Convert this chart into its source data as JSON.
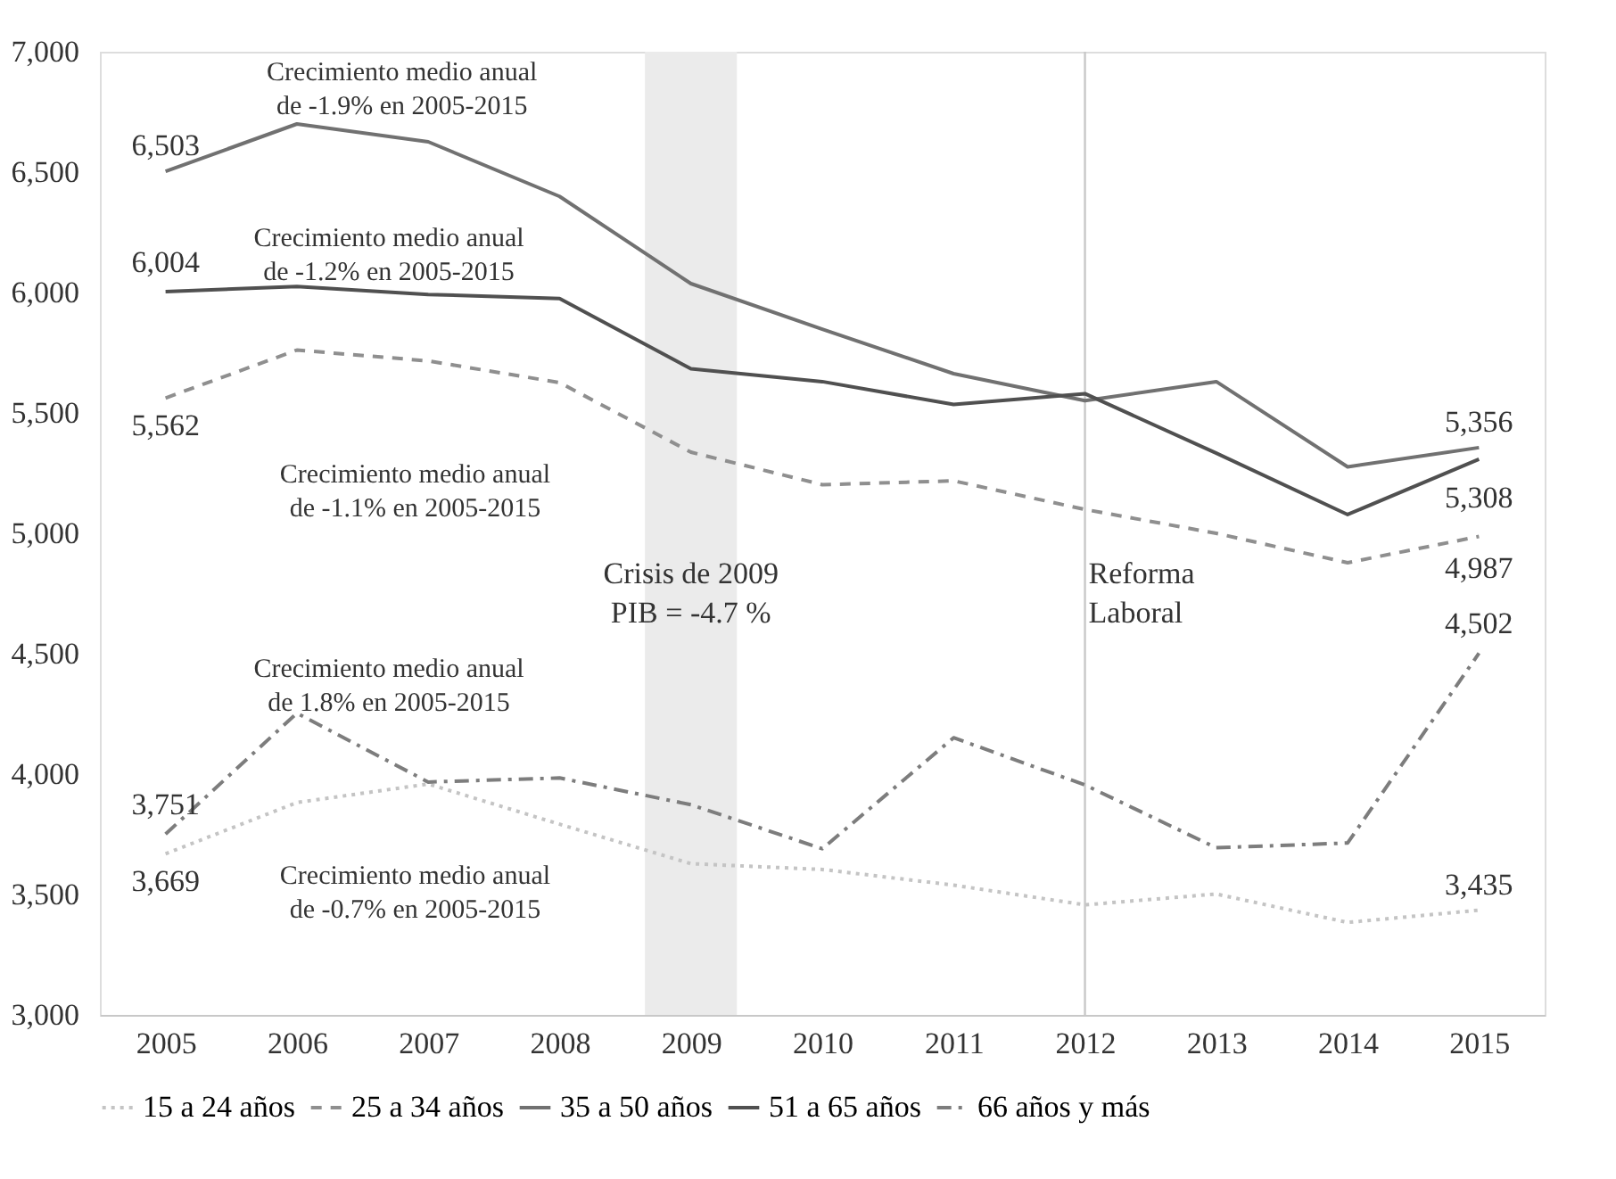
{
  "chart_data": {
    "type": "line",
    "x": [
      2005,
      2006,
      2007,
      2008,
      2009,
      2010,
      2011,
      2012,
      2013,
      2014,
      2015
    ],
    "series": [
      {
        "name": "15 a 24 años",
        "color": "#c4c4c4",
        "line_style": "dotted",
        "values": [
          3669,
          3882,
          3959,
          3792,
          3628,
          3604,
          3539,
          3457,
          3502,
          3384,
          3435
        ],
        "value_labels": [
          "3,669",
          null,
          null,
          null,
          null,
          null,
          null,
          null,
          null,
          null,
          "3,435"
        ]
      },
      {
        "name": "25 a 34 años",
        "color": "#8f8f8f",
        "line_style": "dashed",
        "values": [
          5562,
          5761,
          5716,
          5626,
          5337,
          5202,
          5218,
          5099,
          5000,
          4878,
          4987
        ],
        "value_labels": [
          "5,562",
          null,
          null,
          null,
          null,
          null,
          null,
          null,
          null,
          null,
          "4,987"
        ]
      },
      {
        "name": "35 a 50 años",
        "color": "#717171",
        "line_style": "solid",
        "values": [
          6503,
          6700,
          6626,
          6399,
          6037,
          5848,
          5663,
          5551,
          5630,
          5276,
          5356
        ],
        "value_labels": [
          "6,503",
          null,
          null,
          null,
          null,
          null,
          null,
          null,
          null,
          null,
          "5,356"
        ]
      },
      {
        "name": "51 a 65 años",
        "color": "#505050",
        "line_style": "solid",
        "values": [
          6004,
          6025,
          5992,
          5975,
          5683,
          5630,
          5535,
          5580,
          5333,
          5078,
          5308
        ],
        "value_labels": [
          "6,004",
          null,
          null,
          null,
          null,
          null,
          null,
          null,
          null,
          null,
          "5,308"
        ]
      },
      {
        "name": "66 años y más",
        "color": "#7d7d7d",
        "line_style": "dashdot",
        "values": [
          3751,
          4253,
          3967,
          3984,
          3873,
          3690,
          4151,
          3955,
          3694,
          3714,
          4502
        ],
        "value_labels": [
          "3,751",
          null,
          null,
          null,
          null,
          null,
          null,
          null,
          null,
          null,
          "4,502"
        ]
      }
    ],
    "xlim": [
      2004.5,
      2015.5
    ],
    "xticks": [
      2005,
      2006,
      2007,
      2008,
      2009,
      2010,
      2011,
      2012,
      2013,
      2014,
      2015
    ],
    "ylim": [
      3000,
      7000
    ],
    "yticks": [
      {
        "value": 3000,
        "label": "3,000"
      },
      {
        "value": 3500,
        "label": "3,500"
      },
      {
        "value": 4000,
        "label": "4,000"
      },
      {
        "value": 4500,
        "label": "4,500"
      },
      {
        "value": 5000,
        "label": "5,000"
      },
      {
        "value": 5500,
        "label": "5,500"
      },
      {
        "value": 6000,
        "label": "6,000"
      },
      {
        "value": 6500,
        "label": "6,500"
      },
      {
        "value": 7000,
        "label": "7,000"
      }
    ],
    "grid": false,
    "legend": "bottom",
    "bands": [
      {
        "axis": "x",
        "from": 2008.65,
        "to": 2009.35,
        "label": "Crisis de 2009\nPIB = -4.7 %",
        "color": "#ebebeb"
      }
    ],
    "ref_lines": [
      {
        "axis": "x",
        "value": 2012,
        "label": "Reforma\nLaboral",
        "color": "#c8c8c8"
      }
    ],
    "annotations": [
      "Crecimiento medio anual\nde -1.9% en 2005-2015",
      "Crecimiento medio anual\nde -1.2% en 2005-2015",
      "Crecimiento medio anual\nde -1.1% en 2005-2015",
      "Crecimiento medio anual\nde 1.8% en 2005-2015",
      "Crecimiento medio anual\nde -0.7% en 2005-2015"
    ]
  }
}
